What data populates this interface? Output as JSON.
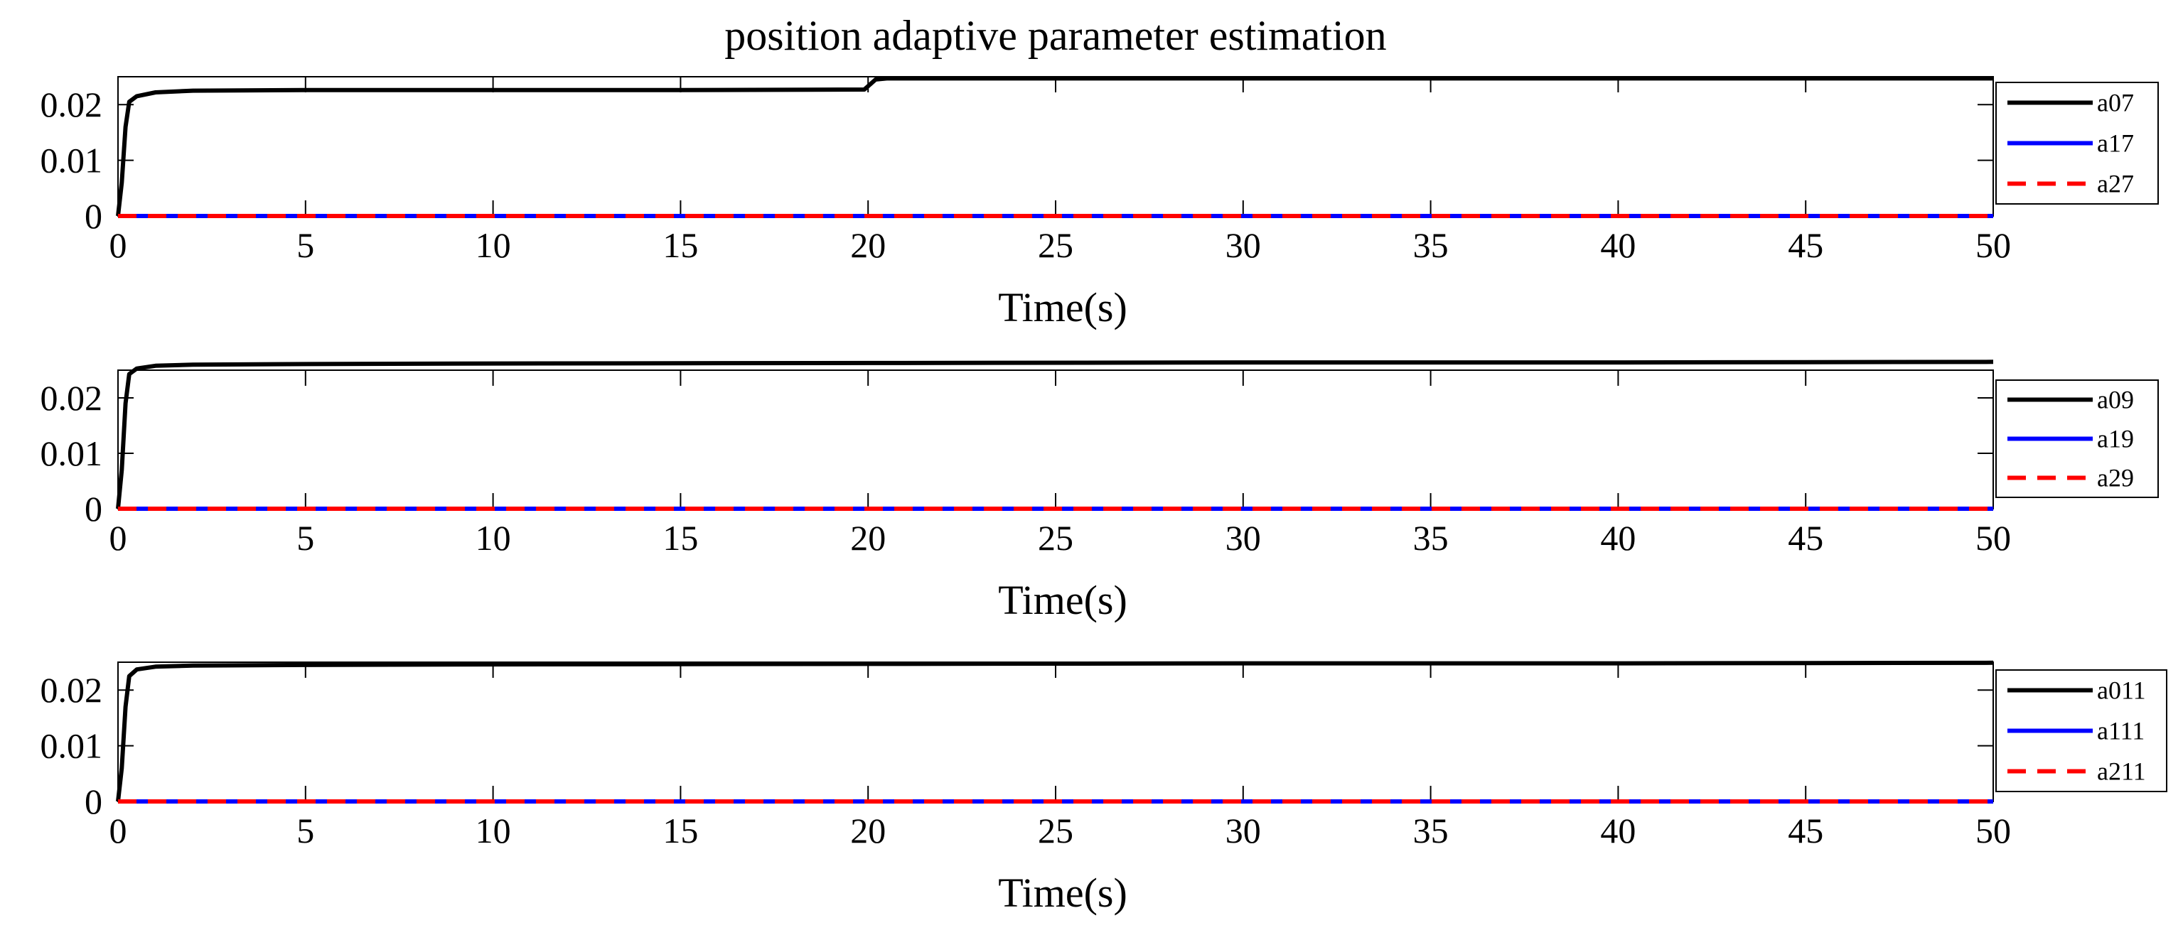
{
  "figure_title": "position adaptive parameter estimation",
  "colors": {
    "black": "#000000",
    "blue": "#0000ff",
    "red": "#ff0000"
  },
  "chart_data": [
    {
      "type": "line",
      "title": "position adaptive parameter estimation",
      "xlabel": "Time(s)",
      "ylabel": "",
      "xlim": [
        0,
        50
      ],
      "ylim": [
        0,
        0.025
      ],
      "xticks": [
        0,
        5,
        10,
        15,
        20,
        25,
        30,
        35,
        40,
        45,
        50
      ],
      "xtick_labels": [
        "0",
        "5",
        "10",
        "15",
        "20",
        "25",
        "30",
        "35",
        "40",
        "45",
        "50"
      ],
      "yticks": [
        0,
        0.01,
        0.02
      ],
      "ytick_labels": [
        "0",
        "0.01",
        "0.02"
      ],
      "legend_position": "right",
      "series": [
        {
          "name": "a07",
          "color": "#000000",
          "style": "solid",
          "x": [
            0,
            0.1,
            0.2,
            0.3,
            0.5,
            1,
            2,
            5,
            10,
            15,
            19.9,
            20.2,
            20.5,
            25,
            30,
            40,
            50
          ],
          "y": [
            0,
            0.006,
            0.016,
            0.0205,
            0.0215,
            0.0222,
            0.0225,
            0.0226,
            0.0226,
            0.0226,
            0.0227,
            0.0245,
            0.0247,
            0.0247,
            0.0247,
            0.0247,
            0.0247
          ]
        },
        {
          "name": "a17",
          "color": "#0000ff",
          "style": "solid",
          "x": [
            0,
            50
          ],
          "y": [
            0,
            0
          ]
        },
        {
          "name": "a27",
          "color": "#ff0000",
          "style": "dashed",
          "x": [
            0,
            50
          ],
          "y": [
            0,
            0
          ]
        }
      ]
    },
    {
      "type": "line",
      "title": "",
      "xlabel": "Time(s)",
      "ylabel": "",
      "xlim": [
        0,
        50
      ],
      "ylim": [
        0,
        0.025
      ],
      "xticks": [
        0,
        5,
        10,
        15,
        20,
        25,
        30,
        35,
        40,
        45,
        50
      ],
      "xtick_labels": [
        "0",
        "5",
        "10",
        "15",
        "20",
        "25",
        "30",
        "35",
        "40",
        "45",
        "50"
      ],
      "yticks": [
        0,
        0.01,
        0.02
      ],
      "ytick_labels": [
        "0",
        "0.01",
        "0.02"
      ],
      "legend_position": "right",
      "series": [
        {
          "name": "a09",
          "color": "#000000",
          "style": "solid",
          "x": [
            0,
            0.1,
            0.2,
            0.3,
            0.5,
            1,
            2,
            5,
            10,
            20,
            30,
            40,
            50
          ],
          "y": [
            0,
            0.007,
            0.019,
            0.0243,
            0.0253,
            0.0258,
            0.026,
            0.0261,
            0.0262,
            0.0263,
            0.0264,
            0.0264,
            0.0265
          ]
        },
        {
          "name": "a19",
          "color": "#0000ff",
          "style": "solid",
          "x": [
            0,
            50
          ],
          "y": [
            0,
            0
          ]
        },
        {
          "name": "a29",
          "color": "#ff0000",
          "style": "dashed",
          "x": [
            0,
            50
          ],
          "y": [
            0,
            0
          ]
        }
      ]
    },
    {
      "type": "line",
      "title": "",
      "xlabel": "Time(s)",
      "ylabel": "",
      "xlim": [
        0,
        50
      ],
      "ylim": [
        0,
        0.025
      ],
      "xticks": [
        0,
        5,
        10,
        15,
        20,
        25,
        30,
        35,
        40,
        45,
        50
      ],
      "xtick_labels": [
        "0",
        "5",
        "10",
        "15",
        "20",
        "25",
        "30",
        "35",
        "40",
        "45",
        "50"
      ],
      "yticks": [
        0,
        0.01,
        0.02
      ],
      "ytick_labels": [
        "0",
        "0.01",
        "0.02"
      ],
      "legend_position": "right",
      "series": [
        {
          "name": "a011",
          "color": "#000000",
          "style": "solid",
          "x": [
            0,
            0.1,
            0.2,
            0.3,
            0.5,
            1,
            2,
            5,
            10,
            20,
            30,
            40,
            50
          ],
          "y": [
            0,
            0.006,
            0.017,
            0.0225,
            0.0237,
            0.0242,
            0.0244,
            0.0245,
            0.0246,
            0.0247,
            0.0248,
            0.0248,
            0.0249
          ]
        },
        {
          "name": "a111",
          "color": "#0000ff",
          "style": "solid",
          "x": [
            0,
            50
          ],
          "y": [
            0,
            0
          ]
        },
        {
          "name": "a211",
          "color": "#ff0000",
          "style": "dashed",
          "x": [
            0,
            50
          ],
          "y": [
            0,
            0
          ]
        }
      ]
    }
  ]
}
